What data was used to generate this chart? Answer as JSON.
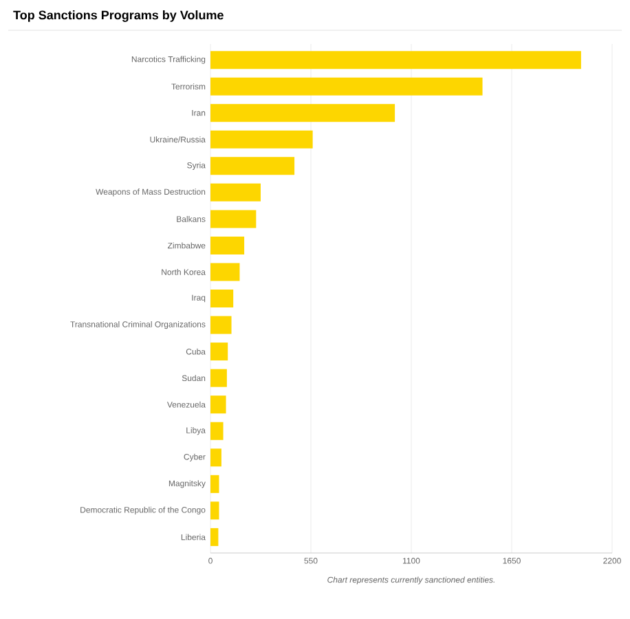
{
  "chart_data": {
    "type": "bar",
    "orientation": "horizontal",
    "title": "Top Sanctions Programs by Volume",
    "categories": [
      "Narcotics Trafficking",
      "Terrorism",
      "Iran",
      "Ukraine/Russia",
      "Syria",
      "Weapons of Mass Destruction",
      "Balkans",
      "Zimbabwe",
      "North Korea",
      "Iraq",
      "Transnational Criminal Organizations",
      "Cuba",
      "Sudan",
      "Venezuela",
      "Libya",
      "Cyber",
      "Magnitsky",
      "Democratic Republic of the Congo",
      "Liberia"
    ],
    "values": [
      2030,
      1490,
      1010,
      560,
      460,
      275,
      250,
      185,
      160,
      125,
      115,
      95,
      90,
      85,
      70,
      60,
      47,
      47,
      43
    ],
    "color": "#fdd600",
    "xlim": [
      0,
      2200
    ],
    "xticks": [
      0,
      550,
      1100,
      1650,
      2200
    ],
    "grid": "x",
    "annotations": [
      "Chart represents currently sanctioned entities."
    ]
  }
}
